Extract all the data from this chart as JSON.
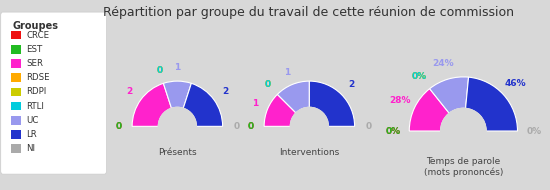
{
  "title": "Répartition par groupe du travail de cette réunion de commission",
  "background_color": "#d8d8d8",
  "legend_bg": "#f5f5f5",
  "groups": [
    "CRCE",
    "EST",
    "SER",
    "RDSE",
    "RDPI",
    "RTLI",
    "UC",
    "LR",
    "NI"
  ],
  "colors": {
    "CRCE": "#ee1111",
    "EST": "#22bb22",
    "SER": "#ff22cc",
    "RDSE": "#ffaa00",
    "RDPI": "#cccc00",
    "RTLI": "#00ccdd",
    "UC": "#9999ee",
    "LR": "#2233cc",
    "NI": "#aaaaaa"
  },
  "presents": {
    "CRCE": 0,
    "EST": 0,
    "SER": 2,
    "RDSE": 0,
    "RDPI": 0,
    "RTLI": 0,
    "UC": 1,
    "LR": 2,
    "NI": 0
  },
  "interventions": {
    "CRCE": 0,
    "EST": 0,
    "SER": 1,
    "RDSE": 0,
    "RDPI": 0,
    "RTLI": 0,
    "UC": 1,
    "LR": 2,
    "NI": 0
  },
  "temps_parole": {
    "CRCE": 0,
    "EST": 0,
    "SER": 28,
    "RDSE": 0,
    "RDPI": 0,
    "RTLI": 0,
    "UC": 24,
    "LR": 46,
    "NI": 0
  },
  "chart_titles": [
    "Présents",
    "Interventions",
    "Temps de parole\n(mots prononcés)"
  ]
}
